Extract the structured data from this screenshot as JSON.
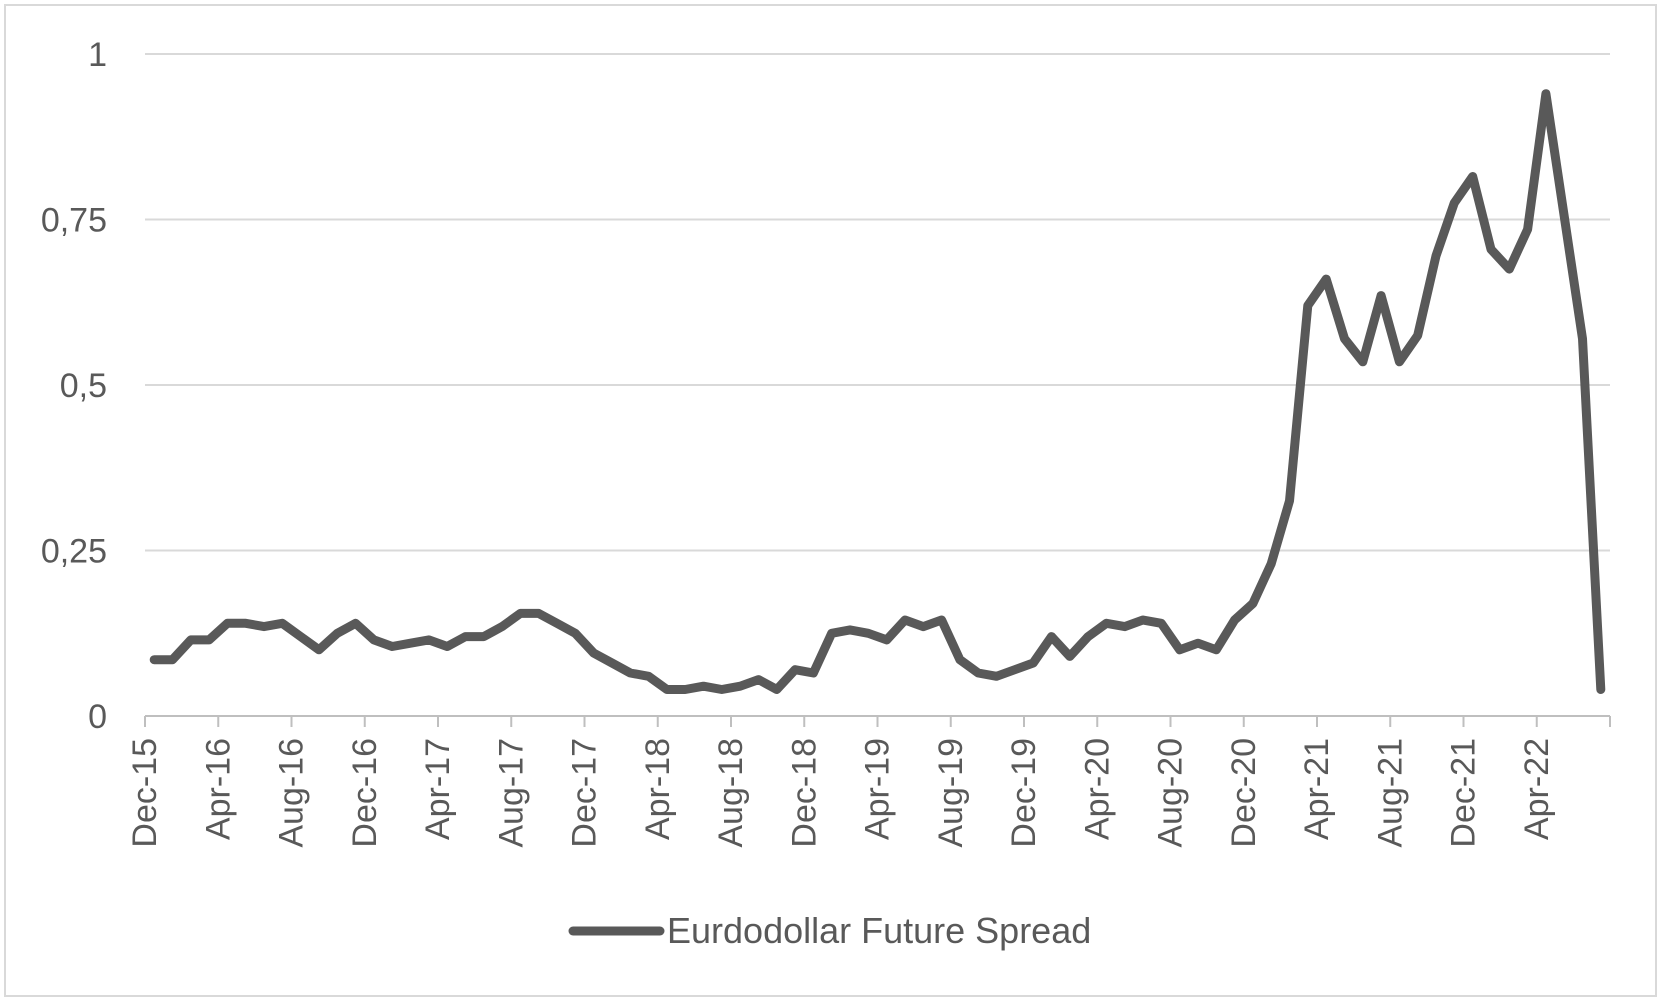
{
  "chart_data": {
    "type": "line",
    "title": "",
    "xlabel": "",
    "ylabel": "",
    "ylim": [
      0,
      1
    ],
    "y_ticks": [
      {
        "value": 0,
        "label": "0"
      },
      {
        "value": 0.25,
        "label": "0,25"
      },
      {
        "value": 0.5,
        "label": "0,5"
      },
      {
        "value": 0.75,
        "label": "0,75"
      },
      {
        "value": 1,
        "label": "1"
      }
    ],
    "x_tick_labels": [
      "Dec-15",
      "Apr-16",
      "Aug-16",
      "Dec-16",
      "Apr-17",
      "Aug-17",
      "Dec-17",
      "Apr-18",
      "Aug-18",
      "Dec-18",
      "Apr-19",
      "Aug-19",
      "Dec-19",
      "Apr-20",
      "Aug-20",
      "Dec-20",
      "Apr-21",
      "Aug-21",
      "Dec-21",
      "Apr-22"
    ],
    "grid": true,
    "legend_position": "bottom",
    "series": [
      {
        "name": "Eurdodollar Future Spread",
        "color": "#595959",
        "x": [
          "Dec-15",
          "Jan-16",
          "Feb-16",
          "Mar-16",
          "Apr-16",
          "May-16",
          "Jun-16",
          "Jul-16",
          "Aug-16",
          "Sep-16",
          "Oct-16",
          "Nov-16",
          "Dec-16",
          "Jan-17",
          "Feb-17",
          "Mar-17",
          "Apr-17",
          "May-17",
          "Jun-17",
          "Jul-17",
          "Aug-17",
          "Sep-17",
          "Oct-17",
          "Nov-17",
          "Dec-17",
          "Jan-18",
          "Feb-18",
          "Mar-18",
          "Apr-18",
          "May-18",
          "Jun-18",
          "Jul-18",
          "Aug-18",
          "Sep-18",
          "Oct-18",
          "Nov-18",
          "Dec-18",
          "Jan-19",
          "Feb-19",
          "Mar-19",
          "Apr-19",
          "May-19",
          "Jun-19",
          "Jul-19",
          "Aug-19",
          "Sep-19",
          "Oct-19",
          "Nov-19",
          "Dec-19",
          "Jan-20",
          "Feb-20",
          "Mar-20",
          "Apr-20",
          "May-20",
          "Jun-20",
          "Jul-20",
          "Aug-20",
          "Sep-20",
          "Oct-20",
          "Nov-20",
          "Dec-20",
          "Jan-21",
          "Feb-21",
          "Mar-21",
          "Apr-21",
          "May-21",
          "Jun-21",
          "Jul-21",
          "Aug-21",
          "Sep-21",
          "Oct-21",
          "Nov-21",
          "Dec-21",
          "Jan-22",
          "Feb-22",
          "Mar-22",
          "Apr-22",
          "May-22",
          "Jun-22",
          "Jul-22"
        ],
        "values": [
          0.085,
          0.085,
          0.115,
          0.115,
          0.14,
          0.14,
          0.135,
          0.14,
          0.12,
          0.1,
          0.125,
          0.14,
          0.115,
          0.105,
          0.11,
          0.115,
          0.105,
          0.12,
          0.12,
          0.135,
          0.155,
          0.155,
          0.14,
          0.125,
          0.095,
          0.08,
          0.065,
          0.06,
          0.04,
          0.04,
          0.045,
          0.04,
          0.045,
          0.055,
          0.04,
          0.07,
          0.065,
          0.125,
          0.13,
          0.125,
          0.115,
          0.145,
          0.135,
          0.145,
          0.085,
          0.065,
          0.06,
          0.07,
          0.08,
          0.12,
          0.09,
          0.12,
          0.14,
          0.135,
          0.145,
          0.14,
          0.1,
          0.11,
          0.1,
          0.145,
          0.17,
          0.23,
          0.325,
          0.62,
          0.66,
          0.57,
          0.535,
          0.635,
          0.535,
          0.575,
          0.695,
          0.775,
          0.815,
          0.705,
          0.675,
          0.735,
          0.94,
          0.755,
          0.57,
          0.04
        ]
      }
    ]
  }
}
